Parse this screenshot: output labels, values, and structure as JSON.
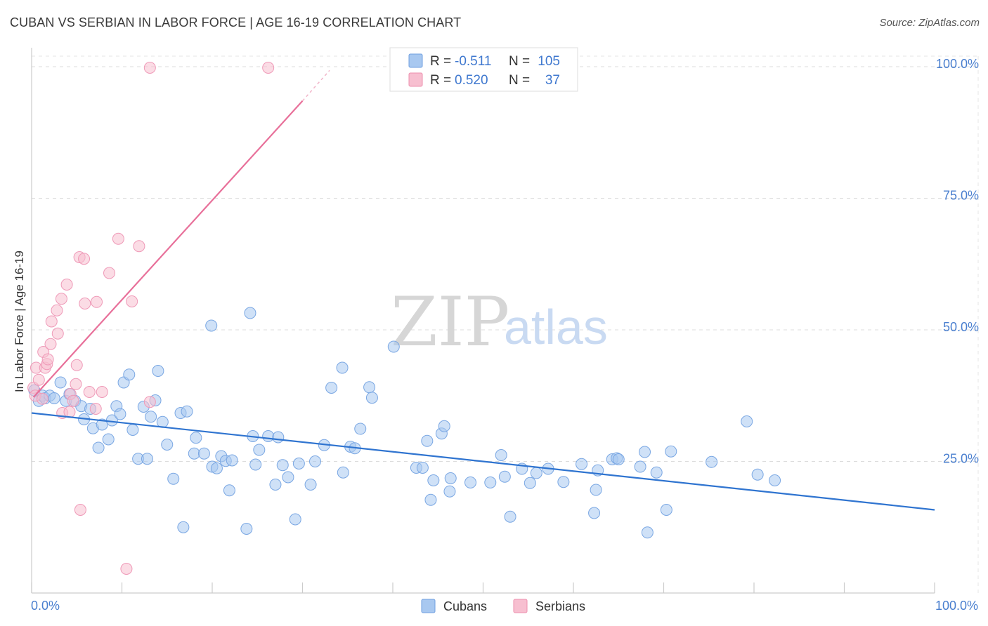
{
  "title": "CUBAN VS SERBIAN IN LABOR FORCE | AGE 16-19 CORRELATION CHART",
  "source": "Source: ZipAtlas.com",
  "watermark": {
    "zip": "ZIP",
    "atlas": "atlas"
  },
  "legend_top": [
    {
      "r_label": "R =",
      "r_value": "-0.511",
      "n_label": "N =",
      "n_value": "105",
      "color": "#a8c8f0",
      "stroke": "#6f9fe0"
    },
    {
      "r_label": "R =",
      "r_value": "0.520",
      "n_label": "N =",
      "n_value": "37",
      "color": "#f7bfd0",
      "stroke": "#ee8fae"
    }
  ],
  "legend_bottom": [
    {
      "label": "Cubans",
      "color": "#a8c8f0",
      "stroke": "#6f9fe0"
    },
    {
      "label": "Serbians",
      "color": "#f7bfd0",
      "stroke": "#ee8fae"
    }
  ],
  "chart_data": {
    "type": "scatter",
    "title": "CUBAN VS SERBIAN IN LABOR FORCE | AGE 16-19 CORRELATION CHART",
    "xlabel": "",
    "ylabel": "In Labor Force | Age 16-19",
    "xlim": [
      0,
      100
    ],
    "ylim": [
      0,
      102
    ],
    "x_tick_labels": [
      "0.0%",
      "100.0%"
    ],
    "y_ticks": [
      25,
      50,
      75,
      100
    ],
    "y_tick_labels": [
      "25.0%",
      "50.0%",
      "75.0%",
      "100.0%"
    ],
    "grid": true,
    "legend_position": "top-center",
    "series": [
      {
        "name": "Cubans",
        "color": "#a8c8f0",
        "line_color": "#2f74d0",
        "trend": {
          "x": [
            0,
            100
          ],
          "y": [
            34.2,
            15.8
          ]
        },
        "points": [
          [
            0.3,
            38.5
          ],
          [
            0.8,
            36.5
          ],
          [
            1.2,
            37.5
          ],
          [
            1.5,
            37
          ],
          [
            2,
            37.5
          ],
          [
            2.5,
            37
          ],
          [
            3.2,
            40
          ],
          [
            3.8,
            36.5
          ],
          [
            4.2,
            37.8
          ],
          [
            4.8,
            36.5
          ],
          [
            5.5,
            35.5
          ],
          [
            5.8,
            33
          ],
          [
            6.5,
            35
          ],
          [
            6.8,
            31.3
          ],
          [
            7.4,
            27.6
          ],
          [
            7.8,
            32
          ],
          [
            8.5,
            29.2
          ],
          [
            8.9,
            32.8
          ],
          [
            9.4,
            35.5
          ],
          [
            9.8,
            34
          ],
          [
            10.2,
            40
          ],
          [
            10.8,
            41.5
          ],
          [
            11.2,
            31
          ],
          [
            11.8,
            25.5
          ],
          [
            12.4,
            35.4
          ],
          [
            12.8,
            25.5
          ],
          [
            13.2,
            33.5
          ],
          [
            13.7,
            36.6
          ],
          [
            14,
            42.2
          ],
          [
            14.5,
            32.5
          ],
          [
            15,
            28.2
          ],
          [
            15.7,
            21.7
          ],
          [
            16.5,
            34.2
          ],
          [
            16.8,
            12.5
          ],
          [
            17.2,
            34.5
          ],
          [
            18,
            26.5
          ],
          [
            18.2,
            29.5
          ],
          [
            19.1,
            26.5
          ],
          [
            19.9,
            50.8
          ],
          [
            20,
            24
          ],
          [
            20.5,
            23.7
          ],
          [
            21,
            26
          ],
          [
            21.5,
            25.1
          ],
          [
            22.2,
            25.2
          ],
          [
            21.9,
            19.5
          ],
          [
            24.2,
            53.2
          ],
          [
            24.5,
            29.8
          ],
          [
            24.8,
            24.4
          ],
          [
            23.8,
            12.2
          ],
          [
            25.2,
            27.2
          ],
          [
            26.2,
            29.8
          ],
          [
            27,
            20.6
          ],
          [
            27.3,
            29.6
          ],
          [
            27.8,
            24.3
          ],
          [
            28.4,
            22
          ],
          [
            29.2,
            14
          ],
          [
            29.6,
            24.6
          ],
          [
            30.9,
            20.6
          ],
          [
            31.4,
            25
          ],
          [
            32.4,
            28.1
          ],
          [
            33.2,
            39
          ],
          [
            34.4,
            42.8
          ],
          [
            34.5,
            22.9
          ],
          [
            35.3,
            27.8
          ],
          [
            35.8,
            27.5
          ],
          [
            36.4,
            31.2
          ],
          [
            37.4,
            39.1
          ],
          [
            37.7,
            37.1
          ],
          [
            40.1,
            46.8
          ],
          [
            42.6,
            23.8
          ],
          [
            43.3,
            23.8
          ],
          [
            43.8,
            28.9
          ],
          [
            44.2,
            17.7
          ],
          [
            44.5,
            21.4
          ],
          [
            45.4,
            30.3
          ],
          [
            45.7,
            31.7
          ],
          [
            46.3,
            19.3
          ],
          [
            46.4,
            21.8
          ],
          [
            48.6,
            21
          ],
          [
            50.8,
            21
          ],
          [
            52,
            26.2
          ],
          [
            52.4,
            22.1
          ],
          [
            53,
            14.5
          ],
          [
            54.3,
            23.6
          ],
          [
            55.2,
            20.9
          ],
          [
            55.9,
            22.8
          ],
          [
            57.2,
            23.6
          ],
          [
            58.9,
            21.1
          ],
          [
            60.9,
            24.5
          ],
          [
            62.3,
            15.2
          ],
          [
            62.5,
            19.6
          ],
          [
            62.7,
            23.3
          ],
          [
            64.3,
            25.4
          ],
          [
            64.8,
            25.6
          ],
          [
            65,
            25.4
          ],
          [
            67.4,
            24
          ],
          [
            67.9,
            26.8
          ],
          [
            68.2,
            11.5
          ],
          [
            69.2,
            22.9
          ],
          [
            70.3,
            15.8
          ],
          [
            70.8,
            26.9
          ],
          [
            75.3,
            24.9
          ],
          [
            79.2,
            32.6
          ],
          [
            80.4,
            22.5
          ],
          [
            82.3,
            21.4
          ]
        ]
      },
      {
        "name": "Serbians",
        "color": "#f7bfd0",
        "line_color": "#e8709a",
        "trend": {
          "x": [
            0.2,
            30
          ],
          "y": [
            37.2,
            93.5
          ]
        },
        "trend_dash": {
          "x": [
            30,
            33
          ],
          "y": [
            93.5,
            99.3
          ]
        },
        "points": [
          [
            0.2,
            39
          ],
          [
            0.4,
            37.5
          ],
          [
            0.5,
            42.8
          ],
          [
            0.8,
            40.5
          ],
          [
            1.2,
            36.9
          ],
          [
            1.3,
            45.8
          ],
          [
            1.5,
            42.8
          ],
          [
            1.7,
            43.5
          ],
          [
            1.8,
            44.4
          ],
          [
            2.1,
            47.3
          ],
          [
            2.2,
            51.6
          ],
          [
            2.8,
            53.7
          ],
          [
            2.9,
            49.3
          ],
          [
            3.3,
            55.9
          ],
          [
            3.4,
            34.2
          ],
          [
            3.9,
            58.6
          ],
          [
            4.2,
            34.4
          ],
          [
            4.3,
            37.8
          ],
          [
            4.6,
            36.5
          ],
          [
            4.9,
            39.7
          ],
          [
            5,
            43.3
          ],
          [
            5.3,
            63.8
          ],
          [
            5.4,
            15.8
          ],
          [
            5.8,
            63.5
          ],
          [
            5.9,
            55
          ],
          [
            6.4,
            38.2
          ],
          [
            7.1,
            35
          ],
          [
            7.2,
            55.3
          ],
          [
            7.8,
            38.2
          ],
          [
            8.6,
            60.8
          ],
          [
            9.6,
            67.3
          ],
          [
            10.5,
            4.6
          ],
          [
            11.1,
            55.4
          ],
          [
            11.9,
            65.9
          ],
          [
            13.1,
            36.3
          ],
          [
            13.1,
            99.8
          ],
          [
            26.2,
            99.8
          ]
        ]
      }
    ]
  }
}
